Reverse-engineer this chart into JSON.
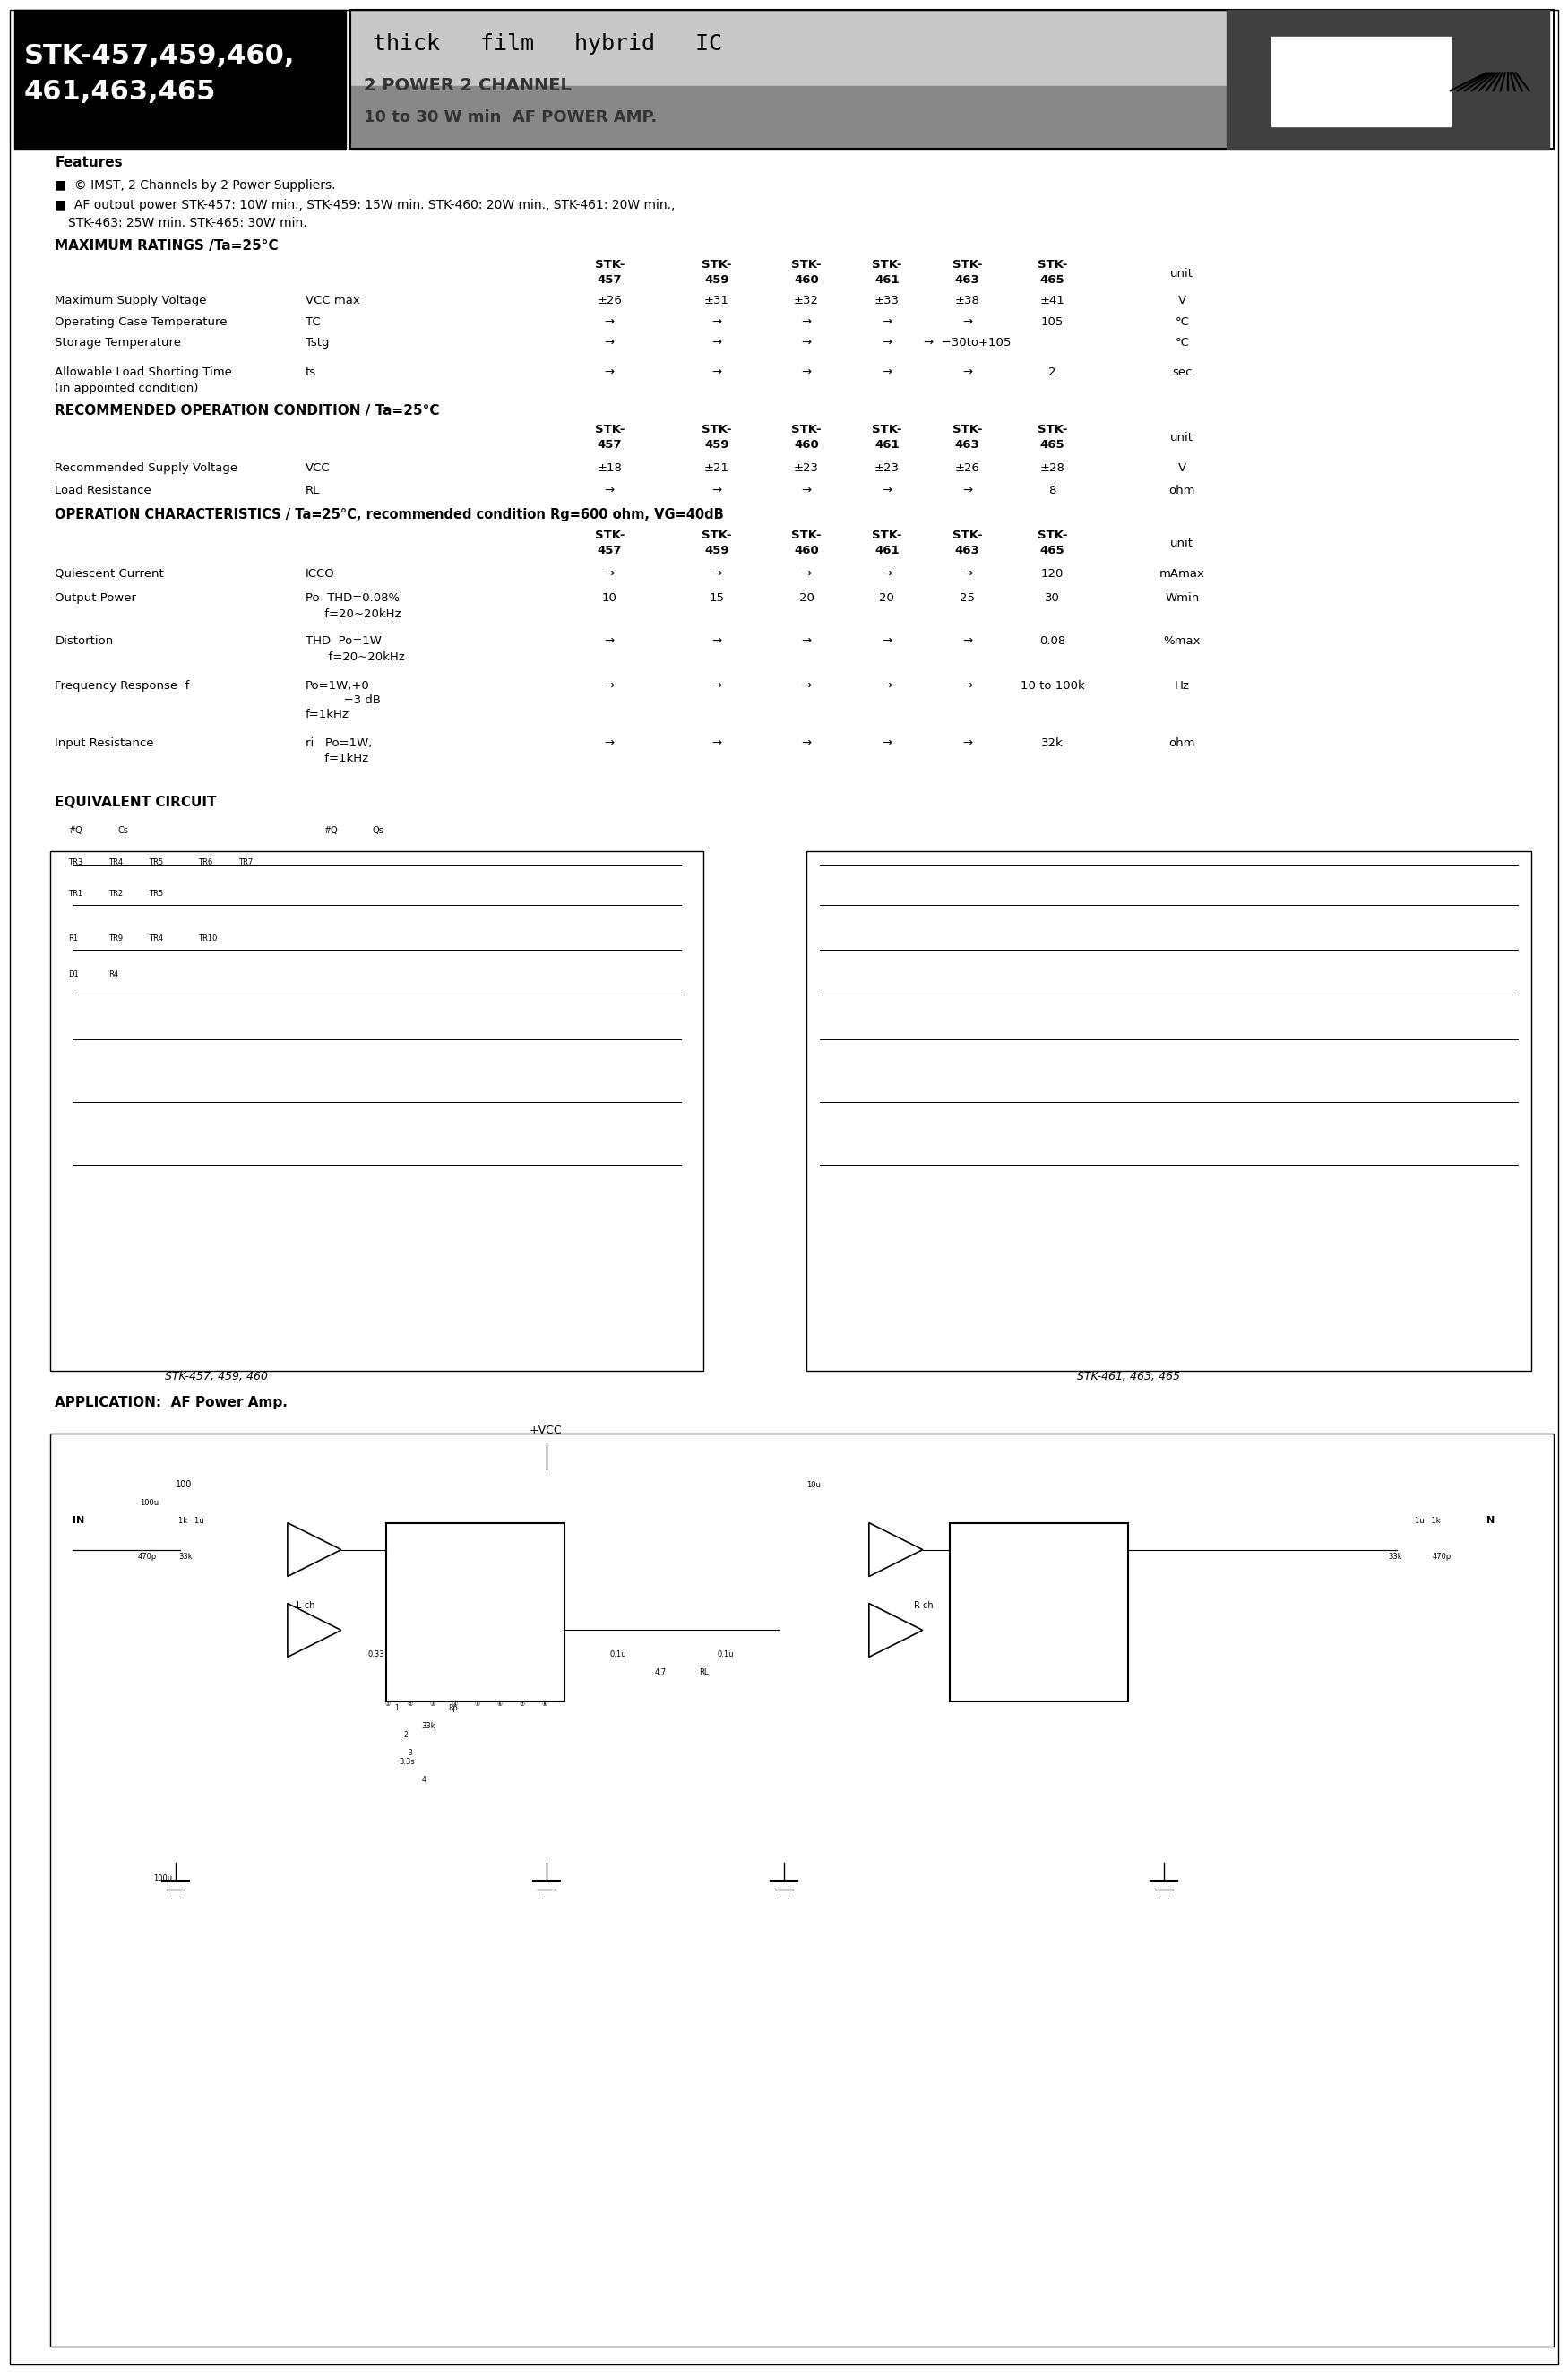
{
  "page_bg": "#ffffff",
  "header_black_bg": "#000000",
  "header_stk_text": "STK-457,459,460,\n461,463,465",
  "header_thick_film": "thick  film  hybrid  IC",
  "subheader1": "2 POWER 2 CHANNEL",
  "subheader2": "10 to 30 W min AF POWER AMP.",
  "features_title": "Features",
  "feature1": "■  © IMST, 2 Channels by 2 Power Suppliers.",
  "feature2": "■  AF output power STK-457: 10W min., STK-459: 15W min  STK-460: 20W min., STK-461: 20W min.,",
  "feature2b": "     STK-463: 25W min. STK-465: 30W min.",
  "max_ratings_title": "MAXIMUM RATINGS /Ta=25°C",
  "table1_headers": [
    "STK-\n457",
    "STK-\n459",
    "STK-\n460",
    "STK-\n461",
    "STK-\n463",
    "STK-\n465",
    "unit"
  ],
  "table1_rows": [
    [
      "Maximum Supply Voltage",
      "VCC max",
      "±26",
      "±31",
      "±32",
      "±33",
      "±38",
      "±41",
      "V"
    ],
    [
      "Operating Case Temperature",
      "TC",
      "→",
      "→",
      "→",
      "→",
      "→",
      "105",
      "°C"
    ],
    [
      "Storage Temperature",
      "Tstg",
      "→",
      "→",
      "→",
      "→",
      "→ −30to+105",
      "",
      "°C"
    ],
    [
      "Allowable Load Shorting Time\n(in appointed condition)",
      "ts",
      "→",
      "→",
      "→",
      "→",
      "→",
      "2",
      "sec"
    ]
  ],
  "rec_op_title": "RECOMMENDED OPERATION CONDITION / Ta=25°C",
  "table2_rows": [
    [
      "Recommended Supply Voltage",
      "VCC",
      "±18",
      "±21",
      "±23",
      "±23",
      "±26",
      "±28",
      "V"
    ],
    [
      "Load Resistance",
      "RL",
      "→",
      "→",
      "→",
      "→",
      "→",
      "8",
      "ohm"
    ]
  ],
  "op_char_title": "OPERATION CHARACTERISTICS / Ta=25°C, recommended condition Rg=600 ohm, VG=40dB",
  "table3_rows": [
    [
      "Quiescent Current",
      "ICCO",
      "→",
      "→",
      "→",
      "→",
      "→",
      "120",
      "mAmax"
    ],
    [
      "Output Power",
      "Po  THD=0.08%\n     f=20~20kHz",
      "10",
      "15",
      "20",
      "20",
      "25",
      "30",
      "Wmin"
    ],
    [
      "Distortion",
      "THD  Po=1W\n      f=20~20kHz",
      "→",
      "→",
      "→",
      "→",
      "→",
      "0.08",
      "%max"
    ],
    [
      "Frequency Response  f",
      "Po=1W,+0\n          −3 dB\nf=1kHz",
      "→",
      "→",
      "→",
      "→",
      "→",
      "10 to 100k",
      "Hz"
    ],
    [
      "Input Resistance",
      "ri  Po=1W,\n    f=1kHz",
      "→",
      "→",
      "→",
      "→",
      "→",
      "32k",
      "ohm"
    ]
  ],
  "equiv_circuit_title": "EQUIVALENT CIRCUIT",
  "app_title": "APPLICATION:  AF Power Amp."
}
